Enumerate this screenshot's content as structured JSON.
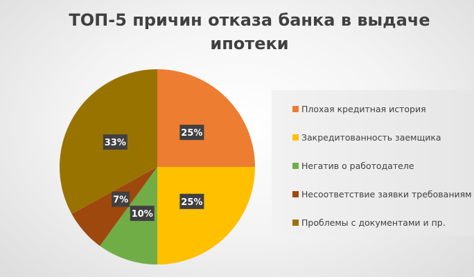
{
  "chart_data": {
    "type": "pie",
    "title": "ТОП-5 причин отказа банка в выдаче ипотеки",
    "categories": [
      "Плохая кредитная история",
      "Закредитованность заемщика",
      "Негатив о работодателе",
      "Несоответствие заявки требованиям",
      "Проблемы с документами и пр."
    ],
    "values": [
      25,
      25,
      10,
      7,
      33
    ],
    "data_labels": [
      "25%",
      "25%",
      "10%",
      "7%",
      "33%"
    ],
    "colors": [
      "#ED7D31",
      "#FFC000",
      "#70AD47",
      "#9E480E",
      "#997300"
    ],
    "legend_position": "right"
  }
}
